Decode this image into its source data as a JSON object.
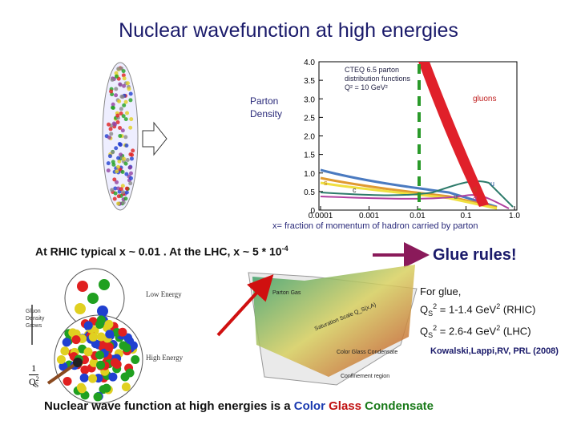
{
  "title": "Nuclear wavefunction at high energies",
  "nucleus_label": [
    "Parton",
    "Density"
  ],
  "pdf_plot": {
    "yticks": [
      "4.0",
      "3.5",
      "3.0",
      "2.5",
      "2.0",
      "1.5",
      "1.0",
      "0.5",
      "0"
    ],
    "xticks": [
      "0.0001",
      "0.001",
      "0.01",
      "0.1",
      "1.0"
    ],
    "legend": [
      "CTEQ 6.5 parton",
      "distribution functions",
      "Q² = 10 GeV²"
    ],
    "gluons": "gluons",
    "curve_labels": [
      "s",
      "c",
      "u",
      "d",
      "d",
      "u"
    ],
    "x_caption": "x= fraction of momentum of hadron carried by parton"
  },
  "rhic_lhc": {
    "text": "At RHIC typical x ~ 0.01 . At the LHC, x ~ 5 * 10",
    "exponent": "-4"
  },
  "glue_rules": "Glue rules!",
  "glue_box": {
    "heading": "For glue,",
    "lines": [
      {
        "q": "Q",
        "sub": "S",
        "sup": "2",
        "rest": " = 1-1.4 GeV",
        "unit_sup": "2",
        "tail": " (RHIC)"
      },
      {
        "q": "Q",
        "sub": "S",
        "sup": "2",
        "rest": " =  2.6-4 GeV",
        "unit_sup": "2",
        "tail": " (LHC)"
      }
    ],
    "reference": "Kowalski,Lappi,RV, PRL (2008)"
  },
  "cgc_figure": {
    "low": "Low Energy",
    "high": "High Energy",
    "arrow": [
      "Gluon",
      "Density",
      "Grows"
    ],
    "inverse": {
      "num": "1",
      "q": "Q",
      "sub": "S",
      "sup": "2"
    }
  },
  "surface_figure": {
    "labels": [
      "Parton Gas",
      "Saturation Scale Q_S(x,A)",
      "Color Glass Condensate",
      "Confinement region"
    ]
  },
  "conclusion": {
    "text": "Nuclear wave function at high energies is a ",
    "color": "Color",
    "glass": "Glass",
    "condensate": "Condensate"
  }
}
